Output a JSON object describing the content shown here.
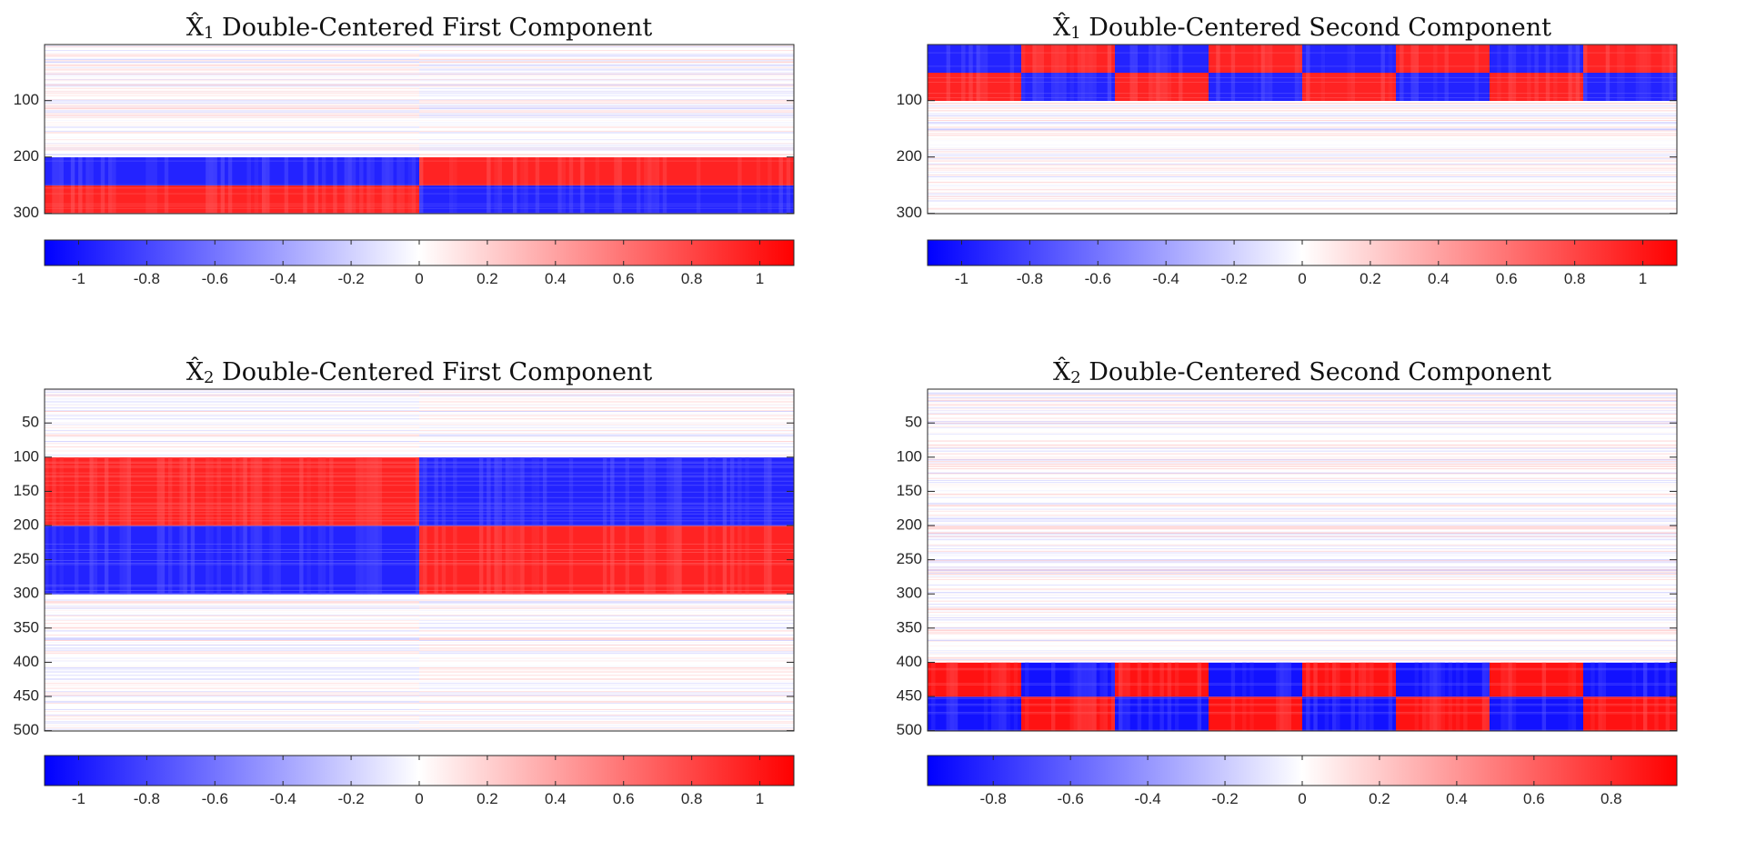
{
  "figure": {
    "background": "#ffffff",
    "colormap": {
      "low": "#0000ff",
      "mid": "#ffffff",
      "high": "#ff0000"
    }
  },
  "chart_data": [
    {
      "type": "heatmap",
      "title": {
        "symbol": "X̂",
        "subscript": "1",
        "text": "Double-Centered First Component"
      },
      "xlabel": "",
      "ylabel": "",
      "y_range": [
        1,
        300
      ],
      "y_ticks": [
        "100",
        "200",
        "300"
      ],
      "x_columns": 200,
      "clim": [
        -1.1,
        1.1
      ],
      "colorbar_ticks": [
        "-1",
        "-0.8",
        "-0.6",
        "-0.4",
        "-0.2",
        "0",
        "0.2",
        "0.4",
        "0.6",
        "0.8",
        "1"
      ],
      "row_blocks": [
        {
          "rows": [
            1,
            200
          ],
          "column_groups": [
            [
              1,
              100,
              0.0
            ],
            [
              101,
              200,
              0.0
            ]
          ]
        },
        {
          "rows": [
            201,
            250
          ],
          "column_groups": [
            [
              1,
              100,
              -0.95
            ],
            [
              101,
              200,
              0.95
            ]
          ]
        },
        {
          "rows": [
            251,
            300
          ],
          "column_groups": [
            [
              1,
              100,
              0.95
            ],
            [
              101,
              200,
              -0.95
            ]
          ]
        }
      ]
    },
    {
      "type": "heatmap",
      "title": {
        "symbol": "X̂",
        "subscript": "1",
        "text": "Double-Centered Second Component"
      },
      "xlabel": "",
      "ylabel": "",
      "y_range": [
        1,
        300
      ],
      "y_ticks": [
        "100",
        "200",
        "300"
      ],
      "x_columns": 200,
      "clim": [
        -1.1,
        1.1
      ],
      "colorbar_ticks": [
        "-1",
        "-0.8",
        "-0.6",
        "-0.4",
        "-0.2",
        "0",
        "0.2",
        "0.4",
        "0.6",
        "0.8",
        "1"
      ],
      "row_blocks": [
        {
          "rows": [
            1,
            50
          ],
          "column_groups": [
            [
              1,
              25,
              -0.95
            ],
            [
              26,
              50,
              0.95
            ],
            [
              51,
              75,
              -0.95
            ],
            [
              76,
              100,
              0.95
            ],
            [
              101,
              125,
              -0.95
            ],
            [
              126,
              150,
              0.95
            ],
            [
              151,
              175,
              -0.95
            ],
            [
              176,
              200,
              0.95
            ]
          ]
        },
        {
          "rows": [
            51,
            100
          ],
          "column_groups": [
            [
              1,
              25,
              0.95
            ],
            [
              26,
              50,
              -0.95
            ],
            [
              51,
              75,
              0.95
            ],
            [
              76,
              100,
              -0.95
            ],
            [
              101,
              125,
              0.95
            ],
            [
              126,
              150,
              -0.95
            ],
            [
              151,
              175,
              0.95
            ],
            [
              176,
              200,
              -0.95
            ]
          ]
        },
        {
          "rows": [
            101,
            300
          ],
          "column_groups": [
            [
              1,
              200,
              0.0
            ]
          ]
        }
      ]
    },
    {
      "type": "heatmap",
      "title": {
        "symbol": "X̂",
        "subscript": "2",
        "text": "Double-Centered First Component"
      },
      "xlabel": "",
      "ylabel": "",
      "y_range": [
        1,
        500
      ],
      "y_ticks": [
        "50",
        "100",
        "150",
        "200",
        "250",
        "300",
        "350",
        "400",
        "450",
        "500"
      ],
      "x_columns": 200,
      "clim": [
        -1.1,
        1.1
      ],
      "colorbar_ticks": [
        "-1",
        "-0.8",
        "-0.6",
        "-0.4",
        "-0.2",
        "0",
        "0.2",
        "0.4",
        "0.6",
        "0.8",
        "1"
      ],
      "row_blocks": [
        {
          "rows": [
            1,
            100
          ],
          "column_groups": [
            [
              1,
              100,
              0.0
            ],
            [
              101,
              200,
              0.0
            ]
          ]
        },
        {
          "rows": [
            101,
            200
          ],
          "column_groups": [
            [
              1,
              100,
              0.95
            ],
            [
              101,
              200,
              -0.95
            ]
          ]
        },
        {
          "rows": [
            201,
            300
          ],
          "column_groups": [
            [
              1,
              100,
              -0.95
            ],
            [
              101,
              200,
              0.95
            ]
          ]
        },
        {
          "rows": [
            301,
            500
          ],
          "column_groups": [
            [
              1,
              100,
              0.0
            ],
            [
              101,
              200,
              0.0
            ]
          ]
        }
      ]
    },
    {
      "type": "heatmap",
      "title": {
        "symbol": "X̂",
        "subscript": "2",
        "text": "Double-Centered Second Component"
      },
      "xlabel": "",
      "ylabel": "",
      "y_range": [
        1,
        500
      ],
      "y_ticks": [
        "50",
        "100",
        "150",
        "200",
        "250",
        "300",
        "350",
        "400",
        "450",
        "500"
      ],
      "x_columns": 200,
      "clim": [
        -0.97,
        0.97
      ],
      "colorbar_ticks": [
        "-0.8",
        "-0.6",
        "-0.4",
        "-0.2",
        "0",
        "0.2",
        "0.4",
        "0.6",
        "0.8"
      ],
      "row_blocks": [
        {
          "rows": [
            1,
            400
          ],
          "column_groups": [
            [
              1,
              200,
              0.0
            ]
          ]
        },
        {
          "rows": [
            401,
            450
          ],
          "column_groups": [
            [
              1,
              25,
              0.9
            ],
            [
              26,
              50,
              -0.9
            ],
            [
              51,
              75,
              0.9
            ],
            [
              76,
              100,
              -0.9
            ],
            [
              101,
              125,
              0.9
            ],
            [
              126,
              150,
              -0.9
            ],
            [
              151,
              175,
              0.9
            ],
            [
              176,
              200,
              -0.9
            ]
          ]
        },
        {
          "rows": [
            451,
            500
          ],
          "column_groups": [
            [
              1,
              25,
              -0.9
            ],
            [
              26,
              50,
              0.9
            ],
            [
              51,
              75,
              -0.9
            ],
            [
              76,
              100,
              0.9
            ],
            [
              101,
              125,
              -0.9
            ],
            [
              126,
              150,
              0.9
            ],
            [
              151,
              175,
              -0.9
            ],
            [
              176,
              200,
              0.9
            ]
          ]
        }
      ]
    }
  ]
}
